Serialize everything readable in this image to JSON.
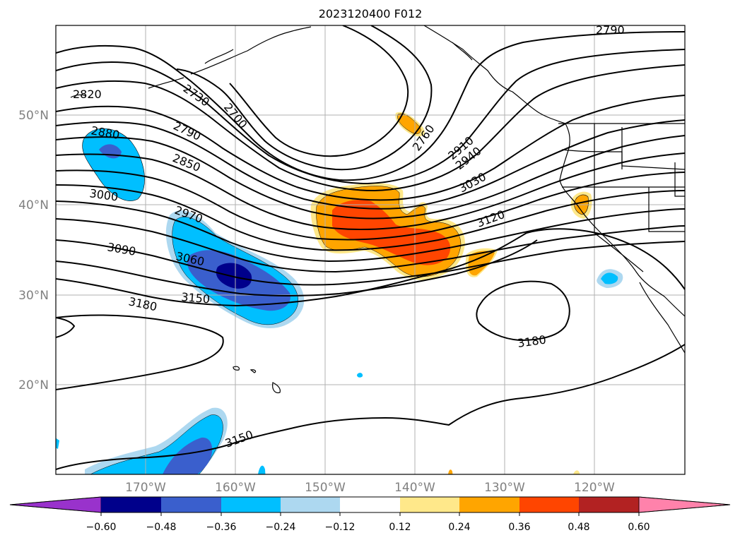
{
  "title": "2023120400 F012",
  "map": {
    "lat_labels": [
      "50°N",
      "40°N",
      "30°N",
      "20°N"
    ],
    "lon_labels": [
      "170°W",
      "160°W",
      "150°W",
      "140°W",
      "130°W",
      "120°W"
    ],
    "label_color": "#808080",
    "grid": true
  },
  "contour_labels": [
    "2820",
    "2730",
    "2700",
    "2880",
    "2790",
    "2850",
    "3000",
    "2970",
    "3090",
    "3060",
    "3150",
    "3180",
    "2760",
    "2910",
    "2940",
    "3030",
    "3120",
    "3180",
    "3150",
    "2790"
  ],
  "colorbar": {
    "ticks": [
      "−0.60",
      "−0.48",
      "−0.36",
      "−0.24",
      "−0.12",
      "0.12",
      "0.24",
      "0.36",
      "0.48",
      "0.60"
    ],
    "colors": [
      "#9932cc",
      "#00008b",
      "#3a5fcd",
      "#00bfff",
      "#add8f0",
      "#ffffff",
      "#ffe88a",
      "#ffa500",
      "#ff4500",
      "#b22222",
      "#ff82ab"
    ]
  }
}
